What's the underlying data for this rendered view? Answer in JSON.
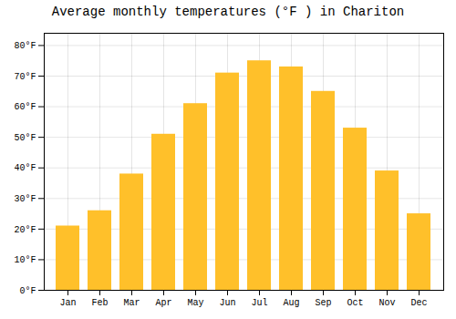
{
  "chart_data": {
    "type": "bar",
    "title": "Average monthly temperatures (°F ) in Chariton",
    "categories": [
      "Jan",
      "Feb",
      "Mar",
      "Apr",
      "May",
      "Jun",
      "Jul",
      "Aug",
      "Sep",
      "Oct",
      "Nov",
      "Dec"
    ],
    "values": [
      21,
      26,
      38,
      51,
      61,
      71,
      75,
      73,
      65,
      53,
      39,
      25
    ],
    "color": "#FFC02A",
    "ylim": [
      0,
      84
    ],
    "yticks": [
      {
        "value": 0,
        "label": "0°F"
      },
      {
        "value": 10,
        "label": "10°F"
      },
      {
        "value": 20,
        "label": "20°F"
      },
      {
        "value": 30,
        "label": "30°F"
      },
      {
        "value": 40,
        "label": "40°F"
      },
      {
        "value": 50,
        "label": "50°F"
      },
      {
        "value": 60,
        "label": "60°F"
      },
      {
        "value": 70,
        "label": "70°F"
      },
      {
        "value": 80,
        "label": "80°F"
      }
    ],
    "grid": true
  }
}
